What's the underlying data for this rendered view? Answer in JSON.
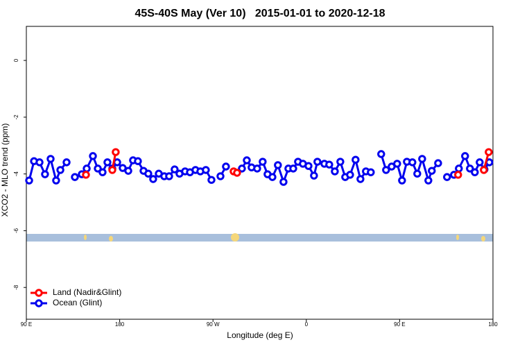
{
  "chart_data": {
    "type": "line",
    "title": "45S-40S May (Ver 10)   2015-01-01 to 2020-12-18",
    "xlabel": "Longitude (deg E)",
    "ylabel": "XCO2 - MLO trend (ppm)",
    "xlim": [
      90,
      540
    ],
    "xticks": [
      {
        "value": 90,
        "label": "90 E"
      },
      {
        "value": 180,
        "label": "180"
      },
      {
        "value": 270,
        "label": "90 W"
      },
      {
        "value": 360,
        "label": "0"
      },
      {
        "value": 450,
        "label": "90 E"
      },
      {
        "value": 540,
        "label": "180"
      }
    ],
    "ylim": [
      -9.12,
      1.2
    ],
    "yticks": [
      0,
      -2,
      -4,
      -6,
      -8
    ],
    "legend": "bottom-left",
    "series": [
      {
        "name": "Land (Nadir&Glint)",
        "color": "#ff0000",
        "x": [
          147.5,
          null,
          172.9,
          176.2,
          null,
          289.9,
          293.2,
          null,
          506.4,
          null,
          531.2,
          535.9
        ],
        "values": [
          -4.03,
          null,
          -3.86,
          -3.23,
          null,
          -3.91,
          -3.96,
          null,
          -4.03,
          null,
          -3.86,
          -3.23
        ]
      },
      {
        "name": "Ocean (Glint)",
        "color": "#0000ee",
        "x": [
          92.7,
          97.4,
          102.7,
          108.0,
          113.4,
          118.7,
          122.8,
          128.8,
          null,
          136.8,
          143.5,
          148.2,
          154.2,
          158.9,
          163.5,
          168.2,
          172.9,
          177.6,
          182.9,
          188.3,
          192.9,
          197.6,
          203.0,
          207.6,
          212.3,
          217.7,
          223.0,
          227.7,
          233.0,
          237.7,
          243.1,
          247.8,
          253.1,
          257.8,
          263.1,
          268.5,
          null,
          277.2,
          282.5,
          null,
          297.9,
          302.6,
          307.2,
          312.6,
          317.9,
          322.6,
          327.3,
          332.6,
          338.0,
          342.7,
          347.4,
          352.0,
          356.7,
          362.1,
          367.4,
          370.7,
          377.4,
          382.1,
          387.5,
          392.8,
          397.5,
          402.2,
          407.5,
          412.2,
          417.5,
          422.2,
          null,
          432.2,
          436.9,
          442.3,
          447.6,
          452.3,
          457.0,
          462.3,
          467.0,
          471.7,
          477.7,
          481.0,
          487.1,
          null,
          495.7,
          502.4,
          507.1,
          513.1,
          517.8,
          522.5,
          527.2,
          531.8,
          536.5
        ],
        "values": [
          -4.23,
          -3.55,
          -3.59,
          -4.01,
          -3.47,
          -4.23,
          -3.86,
          -3.59,
          null,
          -4.11,
          -4.01,
          -3.81,
          -3.37,
          -3.81,
          -3.94,
          -3.59,
          -3.81,
          -3.59,
          -3.79,
          -3.89,
          -3.52,
          -3.55,
          -3.89,
          -3.99,
          -4.18,
          -3.99,
          -4.08,
          -4.08,
          -3.84,
          -3.99,
          -3.91,
          -3.94,
          -3.86,
          -3.91,
          -3.86,
          -4.21,
          null,
          -4.08,
          -3.74,
          null,
          -3.81,
          -3.52,
          -3.77,
          -3.81,
          -3.57,
          -4.01,
          -4.11,
          -3.69,
          -4.28,
          -3.81,
          -3.81,
          -3.57,
          -3.64,
          -3.72,
          -4.06,
          -3.57,
          -3.64,
          -3.67,
          -3.91,
          -3.57,
          -4.11,
          -4.03,
          -3.5,
          -4.18,
          -3.91,
          -3.94,
          null,
          -3.3,
          -3.86,
          -3.74,
          -3.64,
          -4.23,
          -3.57,
          -3.59,
          -3.99,
          -3.47,
          -4.23,
          -3.89,
          -3.62,
          null,
          -4.11,
          -4.03,
          -3.81,
          -3.37,
          -3.81,
          -3.94,
          -3.59,
          -3.84,
          -3.59
        ]
      }
    ]
  }
}
